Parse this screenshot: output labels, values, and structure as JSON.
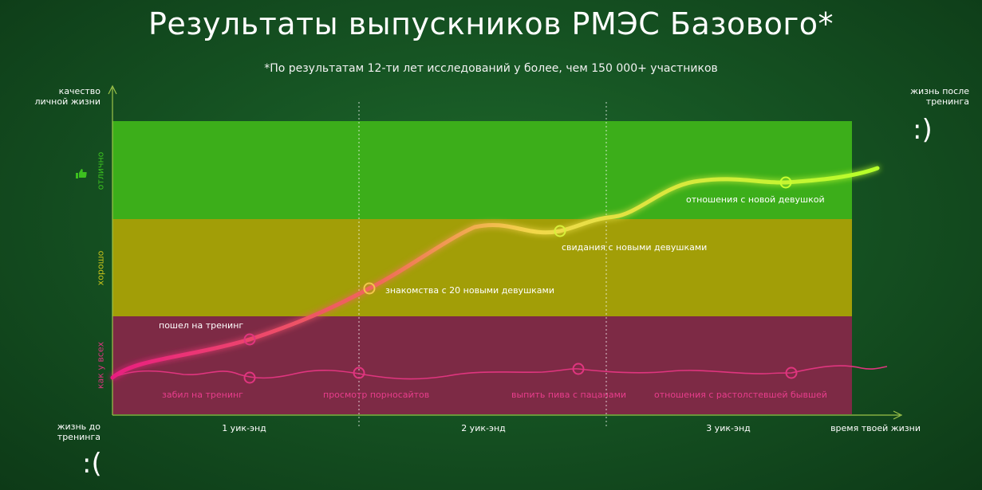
{
  "title": "Результаты выпускников РМЭС Базового*",
  "subtitle": "*По результатам 12-ти лет исследований у более, чем 150 000+ участников",
  "y_axis_label": "качество личной жизни",
  "x_axis_label": "время твоей жизни",
  "life_before": "жизнь до тренинга",
  "life_after": "жизнь после тренинга",
  "smiley_sad": ":(",
  "smiley_happy": ":)",
  "bands": {
    "top": "отлично",
    "middle": "хорошо",
    "bottom": "как у всех"
  },
  "weekends": [
    "1 уик-энд",
    "2 уик-энд",
    "3 уик-энд"
  ],
  "colors": {
    "green_band": "#3cae1a",
    "yellow_band": "#a29e07",
    "red_band": "#7d2a45",
    "good_curve_start": "#e91e80",
    "good_curve_end": "#b6ff2a",
    "bad_curve": "#e0357f"
  },
  "chart_data": {
    "type": "line",
    "series": [
      {
        "milestones": [
          "пошел на тренинг",
          "знакомства с 20 новыми девушками",
          "свидания с новыми девушками",
          "отношения с новой девушкой"
        ]
      },
      {
        "milestones": [
          "забил на тренинг",
          "просмотр порносайтов",
          "выпить пива с пацанами",
          "отношения с растолстевшей бывшей"
        ]
      }
    ]
  }
}
